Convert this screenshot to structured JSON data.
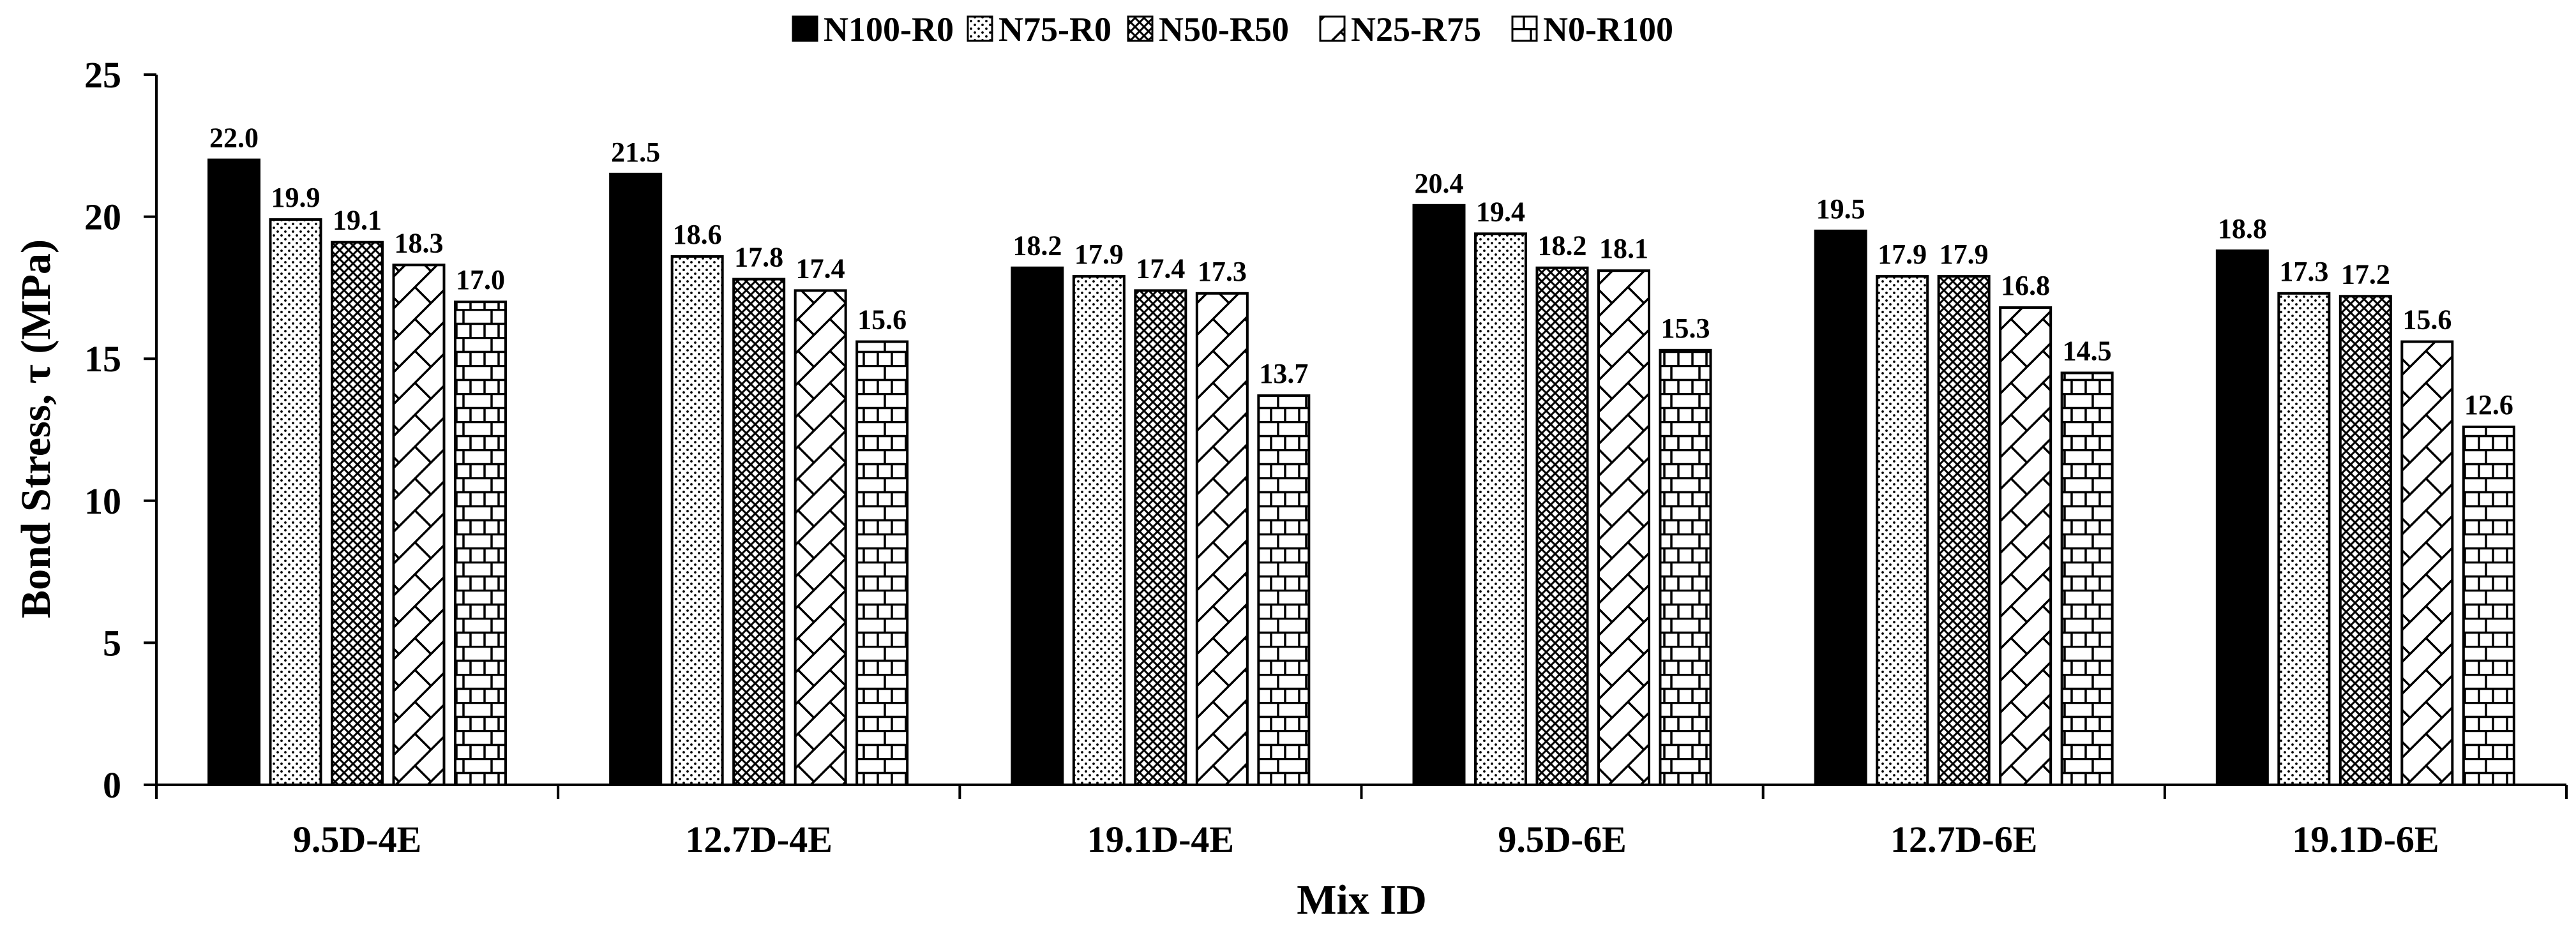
{
  "chart_data": {
    "type": "bar",
    "title": "",
    "xlabel": "Mix ID",
    "ylabel": "Bond Stress, τ (MPa)",
    "ylim": [
      0,
      25
    ],
    "yticks": [
      0,
      5,
      10,
      15,
      20,
      25
    ],
    "grid": false,
    "legend_position": "top",
    "categories": [
      "9.5D-4E",
      "12.7D-4E",
      "19.1D-4E",
      "9.5D-6E",
      "12.7D-6E",
      "19.1D-6E"
    ],
    "series": [
      {
        "name": "N100-R0",
        "pattern": "solid",
        "values": [
          22.0,
          21.5,
          18.2,
          20.4,
          19.5,
          18.8
        ],
        "labels": [
          "22.0",
          "21.5",
          "18.2",
          "20.4",
          "19.5",
          "18.8"
        ]
      },
      {
        "name": "N75-R0",
        "pattern": "dots",
        "values": [
          19.9,
          18.6,
          17.9,
          19.4,
          17.9,
          17.3
        ],
        "labels": [
          "19.9",
          "18.6",
          "17.9",
          "19.4",
          "17.9",
          "17.3"
        ]
      },
      {
        "name": "N50-R50",
        "pattern": "checker",
        "values": [
          19.1,
          17.8,
          17.4,
          18.2,
          17.9,
          17.2
        ],
        "labels": [
          "19.1",
          "17.8",
          "17.4",
          "18.2",
          "17.9",
          "17.2"
        ]
      },
      {
        "name": "N25-R75",
        "pattern": "diagonal",
        "values": [
          18.3,
          17.4,
          17.3,
          18.1,
          16.8,
          15.6
        ],
        "labels": [
          "18.3",
          "17.4",
          "17.3",
          "18.1",
          "16.8",
          "15.6"
        ]
      },
      {
        "name": "N0-R100",
        "pattern": "brick",
        "values": [
          17.0,
          15.6,
          13.7,
          15.3,
          14.5,
          12.6
        ],
        "labels": [
          "17.0",
          "15.6",
          "13.7",
          "15.3",
          "14.5",
          "12.6"
        ]
      }
    ]
  }
}
